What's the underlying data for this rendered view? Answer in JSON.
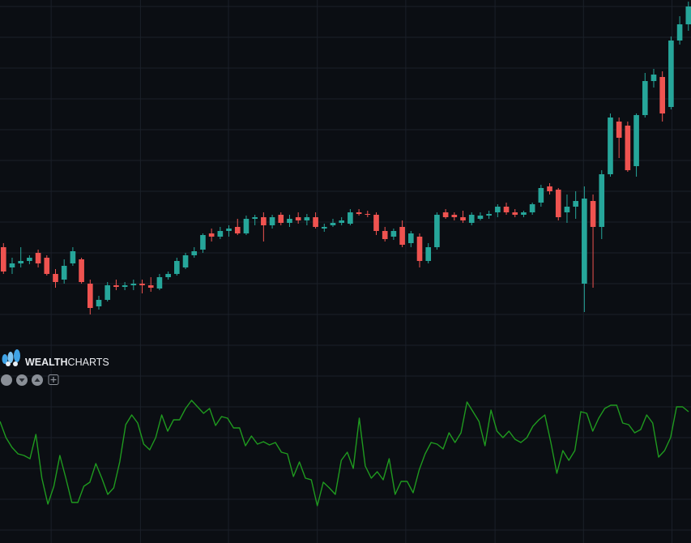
{
  "watermark": {
    "bold": "WEALTH",
    "light": "CHARTS"
  },
  "chart_data": [
    {
      "type": "candlestick",
      "up_color": "#26a69a",
      "down_color": "#ef5350",
      "xlim": [
        -0.4,
        79.3
      ],
      "ylim": [
        0,
        440
      ],
      "xticks": [
        5.5,
        15.8,
        25.95,
        36.2,
        46.4,
        56.7,
        66.9,
        77.1
      ],
      "yticks": [
        14,
        52,
        90,
        128,
        166,
        204,
        242,
        280,
        318,
        356,
        394,
        432
      ],
      "grid": true,
      "open": [
        135,
        110,
        115,
        118,
        128,
        122,
        102,
        95,
        115,
        120,
        90,
        62,
        70,
        88,
        86,
        88,
        90,
        88,
        84,
        98,
        102,
        110,
        125,
        132,
        152,
        148,
        155,
        160,
        152,
        170,
        172,
        162,
        175,
        165,
        172,
        168,
        172,
        158,
        162,
        165,
        164,
        178,
        176,
        175,
        155,
        148,
        160,
        140,
        148,
        118,
        135,
        178,
        175,
        172,
        165,
        170,
        174,
        178,
        185,
        178,
        175,
        178,
        190,
        210,
        206,
        178,
        185,
        90,
        192,
        160,
        225,
        290,
        285,
        235,
        298,
        340,
        345,
        308,
        390,
        410
      ],
      "high": [
        140,
        122,
        135,
        125,
        132,
        125,
        108,
        120,
        135,
        122,
        95,
        75,
        92,
        95,
        92,
        95,
        95,
        98,
        102,
        105,
        122,
        128,
        135,
        152,
        158,
        160,
        162,
        170,
        174,
        175,
        178,
        175,
        178,
        175,
        178,
        176,
        178,
        164,
        170,
        172,
        182,
        182,
        180,
        178,
        160,
        158,
        168,
        155,
        152,
        140,
        178,
        182,
        178,
        180,
        178,
        178,
        180,
        188,
        190,
        182,
        180,
        190,
        212,
        214,
        208,
        200,
        204,
        210,
        200,
        230,
        300,
        295,
        290,
        300,
        350,
        355,
        352,
        395,
        420,
        438
      ],
      "low": [
        102,
        102,
        110,
        114,
        110,
        100,
        85,
        90,
        112,
        90,
        52,
        58,
        68,
        82,
        82,
        82,
        78,
        80,
        82,
        95,
        100,
        108,
        122,
        128,
        142,
        145,
        148,
        150,
        150,
        162,
        142,
        158,
        162,
        160,
        164,
        162,
        158,
        154,
        160,
        162,
        162,
        174,
        172,
        150,
        142,
        144,
        135,
        135,
        110,
        115,
        132,
        170,
        168,
        165,
        162,
        168,
        170,
        172,
        175,
        172,
        172,
        175,
        185,
        200,
        168,
        165,
        170,
        55,
        85,
        145,
        222,
        245,
        228,
        222,
        295,
        332,
        290,
        305,
        385,
        402
      ],
      "close": [
        105,
        115,
        118,
        122,
        115,
        102,
        92,
        112,
        130,
        92,
        60,
        70,
        88,
        86,
        88,
        90,
        88,
        85,
        98,
        102,
        118,
        125,
        130,
        150,
        148,
        155,
        158,
        152,
        170,
        172,
        162,
        172,
        165,
        170,
        168,
        172,
        160,
        160,
        165,
        168,
        178,
        176,
        175,
        155,
        145,
        155,
        138,
        152,
        118,
        135,
        175,
        172,
        172,
        168,
        175,
        174,
        176,
        185,
        178,
        175,
        178,
        188,
        208,
        204,
        172,
        185,
        192,
        195,
        160,
        225,
        295,
        270,
        230,
        298,
        340,
        348,
        300,
        390,
        410,
        432
      ]
    },
    {
      "type": "line",
      "color": "#1f9a1f",
      "ylim": [
        0,
        230
      ],
      "yticks": [
        16,
        54,
        92,
        130,
        168,
        206
      ],
      "grid": true,
      "values": [
        150,
        130,
        118,
        110,
        108,
        104,
        134,
        80,
        48,
        70,
        108,
        80,
        50,
        50,
        70,
        75,
        98,
        80,
        60,
        68,
        100,
        146,
        158,
        148,
        122,
        115,
        130,
        158,
        138,
        152,
        152,
        166,
        176,
        168,
        160,
        166,
        145,
        156,
        154,
        142,
        142,
        120,
        132,
        122,
        125,
        121,
        124,
        112,
        110,
        82,
        100,
        80,
        78,
        46,
        75,
        68,
        60,
        102,
        112,
        92,
        154,
        95,
        80,
        88,
        78,
        104,
        60,
        76,
        76,
        62,
        90,
        110,
        124,
        122,
        116,
        136,
        124,
        136,
        174,
        162,
        150,
        120,
        164,
        138,
        130,
        138,
        128,
        124,
        130,
        144,
        152,
        158,
        124,
        86,
        114,
        102,
        114,
        162,
        160,
        138,
        154,
        166,
        170,
        170,
        148,
        146,
        136,
        140,
        158,
        148,
        106,
        114,
        130,
        168,
        168,
        162
      ]
    }
  ]
}
